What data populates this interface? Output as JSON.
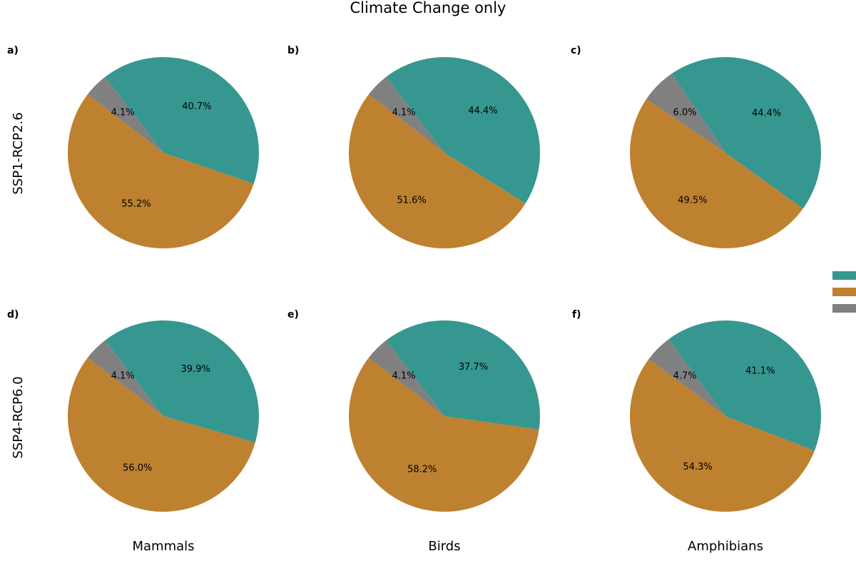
{
  "title": "Climate Change only",
  "colors": {
    "teal": "#369790",
    "orange": "#BE812F",
    "gray": "#808080"
  },
  "row_labels": [
    "SSP1-RCP2.6",
    "SSP4-RCP6.0"
  ],
  "column_labels": [
    "Mammals",
    "Birds",
    "Amphibians"
  ],
  "legend": {
    "swatches": [
      "#369790",
      "#BE812F",
      "#808080"
    ]
  },
  "chart_data": [
    {
      "type": "pie",
      "panel": "a)",
      "row": "SSP1-RCP2.6",
      "column": "Mammals",
      "slices": [
        {
          "value": 4.1,
          "label": "4.1%",
          "color": "#808080"
        },
        {
          "value": 55.2,
          "label": "55.2%",
          "color": "#BE812F"
        },
        {
          "value": 40.7,
          "label": "40.7%",
          "color": "#369790"
        }
      ]
    },
    {
      "type": "pie",
      "panel": "b)",
      "row": "SSP1-RCP2.6",
      "column": "Birds",
      "slices": [
        {
          "value": 4.1,
          "label": "4.1%",
          "color": "#808080"
        },
        {
          "value": 51.6,
          "label": "51.6%",
          "color": "#BE812F"
        },
        {
          "value": 44.4,
          "label": "44.4%",
          "color": "#369790"
        }
      ]
    },
    {
      "type": "pie",
      "panel": "c)",
      "row": "SSP1-RCP2.6",
      "column": "Amphibians",
      "slices": [
        {
          "value": 6.0,
          "label": "6.0%",
          "color": "#808080"
        },
        {
          "value": 49.5,
          "label": "49.5%",
          "color": "#BE812F"
        },
        {
          "value": 44.4,
          "label": "44.4%",
          "color": "#369790"
        }
      ]
    },
    {
      "type": "pie",
      "panel": "d)",
      "row": "SSP4-RCP6.0",
      "column": "Mammals",
      "slices": [
        {
          "value": 4.1,
          "label": "4.1%",
          "color": "#808080"
        },
        {
          "value": 56.0,
          "label": "56.0%",
          "color": "#BE812F"
        },
        {
          "value": 39.9,
          "label": "39.9%",
          "color": "#369790"
        }
      ]
    },
    {
      "type": "pie",
      "panel": "e)",
      "row": "SSP4-RCP6.0",
      "column": "Birds",
      "slices": [
        {
          "value": 4.1,
          "label": "4.1%",
          "color": "#808080"
        },
        {
          "value": 58.2,
          "label": "58.2%",
          "color": "#BE812F"
        },
        {
          "value": 37.7,
          "label": "37.7%",
          "color": "#369790"
        }
      ]
    },
    {
      "type": "pie",
      "panel": "f)",
      "row": "SSP4-RCP6.0",
      "column": "Amphibians",
      "slices": [
        {
          "value": 4.7,
          "label": "4.7%",
          "color": "#808080"
        },
        {
          "value": 54.3,
          "label": "54.3%",
          "color": "#BE812F"
        },
        {
          "value": 41.1,
          "label": "41.1%",
          "color": "#369790"
        }
      ]
    }
  ]
}
